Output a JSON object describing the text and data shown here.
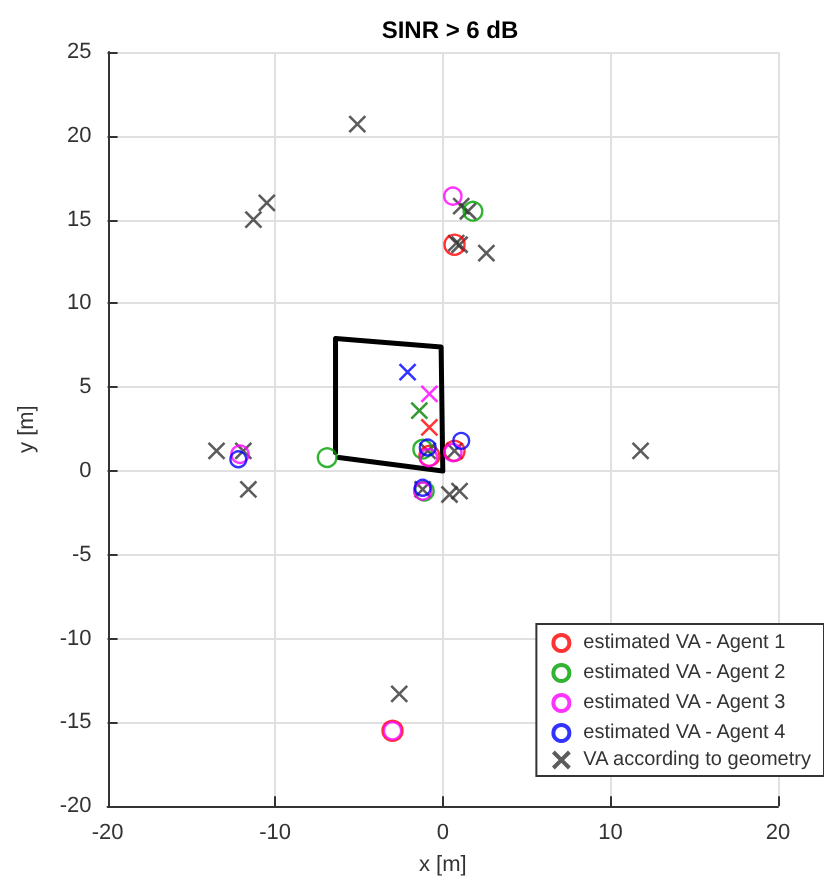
{
  "chart_data": {
    "type": "scatter",
    "title": "SINR > 6 dB",
    "xlabel": "x [m]",
    "ylabel": "y [m]",
    "xlim": [
      -20,
      20
    ],
    "xticks": [
      -20,
      -10,
      0,
      10,
      20
    ],
    "ylim": [
      -20,
      25
    ],
    "yticks": [
      -20,
      -15,
      -10,
      -5,
      0,
      5,
      10,
      15,
      20,
      25
    ],
    "grid": true,
    "legend": "bottom right",
    "series": [
      {
        "type": "line",
        "color": "#000000",
        "marker": "none",
        "line_style": "solid",
        "x": [
          -6.4,
          -6.4,
          -0.1,
          0,
          -6.2
        ],
        "values": [
          1.1,
          7.9,
          7.4,
          0,
          0.8
        ]
      },
      {
        "color": "#ff0000",
        "marker": "cross",
        "x": [
          -0.8
        ],
        "values": [
          2.6
        ]
      },
      {
        "color": "#008000",
        "marker": "cross",
        "x": [
          -1.4
        ],
        "values": [
          3.6
        ]
      },
      {
        "color": "#ff00ff",
        "marker": "cross",
        "x": [
          -0.8
        ],
        "values": [
          4.6
        ]
      },
      {
        "color": "#0000ff",
        "marker": "cross",
        "x": [
          -2.1
        ],
        "values": [
          5.9
        ]
      },
      {
        "name": "estimated VA - Agent 1",
        "color": "#ff0000",
        "marker": "circle",
        "x": [
          0.7,
          -3.0,
          0.7,
          -0.8
        ],
        "values": [
          13.5,
          -15.5,
          1.2,
          0.9
        ]
      },
      {
        "name": "estimated VA - Agent 2",
        "color": "#00a000",
        "marker": "circle",
        "x": [
          1.8,
          -6.9,
          -1.2,
          -1.1
        ],
        "values": [
          15.5,
          0.8,
          1.3,
          -1.2
        ]
      },
      {
        "name": "estimated VA - Agent 3",
        "color": "#ff00ff",
        "marker": "circle",
        "x": [
          0.6,
          -12.1,
          -0.85,
          -1.2,
          -3.0,
          0.6
        ],
        "values": [
          16.4,
          1.0,
          0.8,
          -1.2,
          -15.5,
          1.1
        ]
      },
      {
        "name": "estimated VA - Agent 4",
        "color": "#0000ff",
        "marker": "circle",
        "x": [
          -12.2,
          -0.9,
          1.1,
          -1.2
        ],
        "values": [
          0.7,
          1.4,
          1.8,
          -1.0
        ]
      },
      {
        "name": "VA according to geometry",
        "color": "#333333",
        "marker": "cross",
        "x": [
          -5.1,
          -11.3,
          -10.5,
          1.1,
          1.5,
          0.8,
          1.0,
          2.6,
          -13.5,
          -11.9,
          -11.6,
          -0.9,
          0.7,
          11.8,
          -1.2,
          0.4,
          1.0,
          -2.6
        ],
        "values": [
          20.7,
          15.0,
          16.0,
          15.8,
          15.5,
          13.6,
          13.5,
          13.0,
          1.2,
          1.2,
          -1.1,
          1.2,
          1.2,
          1.2,
          -1.1,
          -1.4,
          -1.2,
          -13.3
        ]
      }
    ]
  }
}
